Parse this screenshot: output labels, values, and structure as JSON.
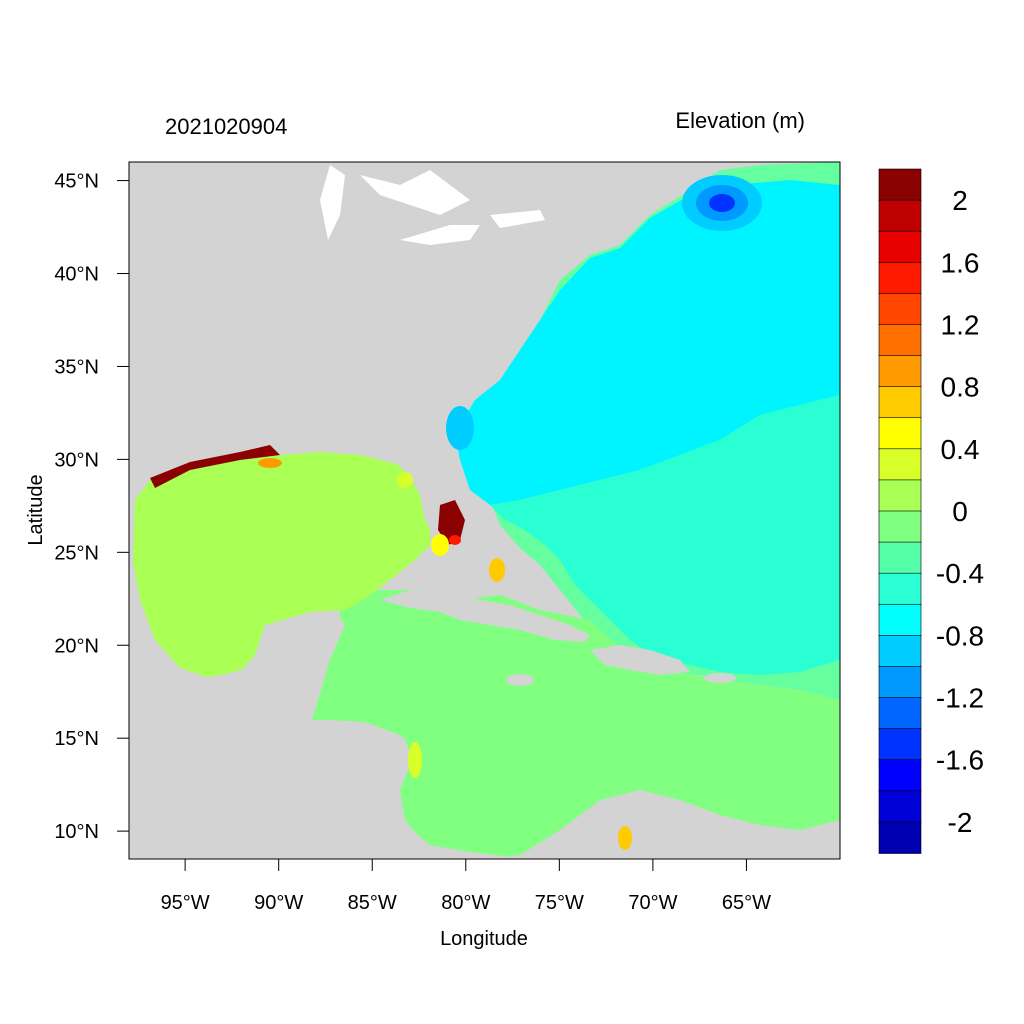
{
  "map": {
    "title_left": "2021020904",
    "title_right": "Elevation (m)",
    "xlabel": "Longitude",
    "ylabel": "Latitude",
    "x_ticks": [
      "95°W",
      "90°W",
      "85°W",
      "80°W",
      "75°W",
      "70°W",
      "65°W"
    ],
    "x_tick_values": [
      -95,
      -90,
      -85,
      -80,
      -75,
      -70,
      -65
    ],
    "y_ticks": [
      "45°N",
      "40°N",
      "35°N",
      "30°N",
      "25°N",
      "20°N",
      "15°N",
      "10°N"
    ],
    "y_tick_values": [
      45,
      40,
      35,
      30,
      25,
      20,
      15,
      10
    ],
    "lon_range": [
      -98,
      -60
    ],
    "lat_range": [
      8.5,
      46
    ],
    "land_color": "#d3d3d3"
  },
  "colorbar": {
    "labels": [
      "2",
      "1.6",
      "1.2",
      "0.8",
      "0.4",
      "0",
      "-0.4",
      "-0.8",
      "-1.2",
      "-1.6",
      "-2"
    ],
    "colors_top_to_bottom": [
      "#8b0000",
      "#bf0000",
      "#e60000",
      "#ff1a00",
      "#ff4500",
      "#ff7000",
      "#ff9b00",
      "#ffcb00",
      "#ffff00",
      "#d9ff2a",
      "#aaff55",
      "#80ff80",
      "#55ffaa",
      "#2affd4",
      "#00ffff",
      "#00ccff",
      "#0099ff",
      "#0066ff",
      "#0033ff",
      "#0000ff",
      "#0000d9",
      "#0000b3"
    ]
  }
}
